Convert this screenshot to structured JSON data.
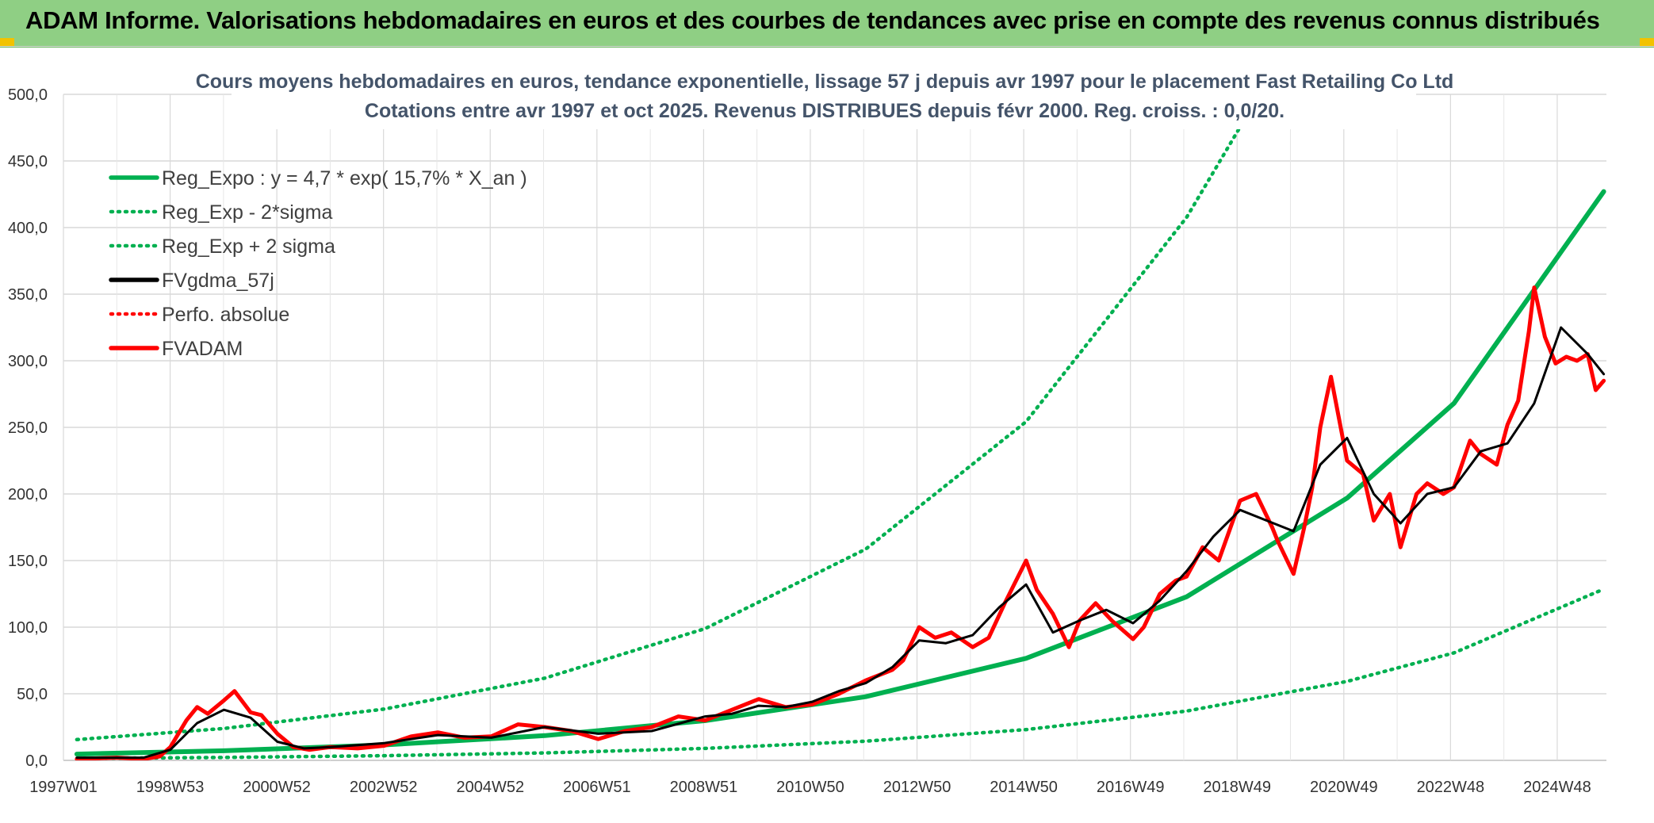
{
  "header": {
    "title": "ADAM Informe. Valorisations hebdomadaires en euros et des courbes de tendances avec prise en compte des revenus connus distribués"
  },
  "colors": {
    "header_bg": "#8fcf84",
    "reg_expo": "#00b050",
    "fv_gdma": "#000000",
    "fvadam": "#ff0000",
    "grid": "#d9d9d9"
  },
  "chart_data": {
    "type": "line",
    "title": "Cours moyens hebdomadaires en euros, tendance exponentielle, lissage 57 j depuis avr 1997 pour le placement Fast Retailing Co Ltd",
    "subtitle": "Cotations entre avr 1997 et oct 2025. Revenus DISTRIBUES depuis févr 2000. Reg. croiss. : 0,0/20.",
    "xlabel": "",
    "ylabel": "",
    "ylim": [
      0,
      500
    ],
    "yticks": [
      "0,0",
      "50,0",
      "100,0",
      "150,0",
      "200,0",
      "250,0",
      "300,0",
      "350,0",
      "400,0",
      "450,0",
      "500,0"
    ],
    "xticks": [
      "1997W01",
      "1998W53",
      "2000W52",
      "2002W52",
      "2004W52",
      "2006W51",
      "2008W51",
      "2010W50",
      "2012W50",
      "2014W50",
      "2016W49",
      "2018W49",
      "2020W49",
      "2022W48",
      "2024W48"
    ],
    "x_range": [
      1997.0,
      2025.85
    ],
    "grid": true,
    "legend_position": "top-left",
    "legend": [
      {
        "label": "Reg_Expo : y = 4,7 * exp( 15,7% *  X_an )",
        "color": "#00b050",
        "style": "solid"
      },
      {
        "label": "Reg_Exp - 2*sigma",
        "color": "#00b050",
        "style": "dotted"
      },
      {
        "label": "Reg_Exp + 2 sigma",
        "color": "#00b050",
        "style": "dotted"
      },
      {
        "label": "FVgdma_57j",
        "color": "#000000",
        "style": "solid"
      },
      {
        "label": "Perfo. absolue",
        "color": "#ff0000",
        "style": "dotted"
      },
      {
        "label": "FVADAM",
        "color": "#ff0000",
        "style": "solid"
      }
    ],
    "series": [
      {
        "name": "Reg_Expo : y = 4,7 * exp( 15,7% *  X_an )",
        "x": [
          1997.25,
          2000,
          2003,
          2006,
          2009,
          2012,
          2015,
          2018,
          2021,
          2023,
          2025.8
        ],
        "values": [
          4.7,
          7.2,
          11.6,
          18.6,
          29.8,
          47.8,
          76.6,
          122.8,
          196.9,
          268.1,
          427
        ]
      },
      {
        "name": "Reg_Exp - 2*sigma",
        "x": [
          1997.25,
          2000,
          2003,
          2006,
          2009,
          2012,
          2015,
          2018,
          2021,
          2023,
          2025.8
        ],
        "values": [
          1.4,
          2.2,
          3.5,
          5.6,
          9.0,
          14.4,
          23.1,
          37.0,
          59.3,
          80.7,
          128.6
        ]
      },
      {
        "name": "Reg_Exp + 2 sigma",
        "x": [
          1997.25,
          2000,
          2003,
          2006,
          2009,
          2012,
          2015,
          2018,
          2019,
          2020,
          2021,
          2021.5,
          2025.8
        ],
        "values": [
          15.6,
          23.9,
          38.5,
          61.7,
          98.9,
          158.6,
          254.3,
          407.6,
          475.5,
          500,
          500,
          500,
          500
        ]
      },
      {
        "name": "FVgdma_57j",
        "x": [
          1997.25,
          1998.0,
          1998.5,
          1999.0,
          1999.5,
          2000.0,
          2000.5,
          2001.0,
          2001.5,
          2002.0,
          2003.0,
          2004.0,
          2005.0,
          2006.0,
          2007.0,
          2008.0,
          2009.0,
          2009.5,
          2010.0,
          2010.5,
          2011.0,
          2011.5,
          2012.0,
          2012.5,
          2013.0,
          2013.5,
          2014.0,
          2014.5,
          2015.0,
          2015.5,
          2016.0,
          2016.5,
          2017.0,
          2017.5,
          2018.0,
          2018.5,
          2019.0,
          2019.5,
          2020.0,
          2020.5,
          2021.0,
          2021.5,
          2022.0,
          2022.5,
          2023.0,
          2023.5,
          2024.0,
          2024.5,
          2025.0,
          2025.5,
          2025.8
        ],
        "values": [
          2,
          2,
          2,
          8,
          28,
          38,
          32,
          14,
          9,
          10,
          13,
          19,
          17,
          25,
          20,
          22,
          33,
          35,
          41,
          40,
          44,
          52,
          58,
          70,
          90,
          88,
          94,
          115,
          132,
          96,
          105,
          113,
          103,
          120,
          142,
          168,
          188,
          180,
          172,
          222,
          242,
          200,
          178,
          200,
          205,
          232,
          238,
          268,
          325,
          305,
          290
        ]
      },
      {
        "name": "FVADAM",
        "x": [
          1997.25,
          1998.0,
          1998.5,
          1998.8,
          1999.0,
          1999.3,
          1999.5,
          1999.7,
          2000.0,
          2000.2,
          2000.5,
          2000.7,
          2001.0,
          2001.3,
          2001.6,
          2002.0,
          2002.5,
          2003.0,
          2003.5,
          2004.0,
          2004.5,
          2005.0,
          2005.5,
          2006.0,
          2006.5,
          2007.0,
          2007.5,
          2008.0,
          2008.5,
          2009.0,
          2009.5,
          2010.0,
          2010.5,
          2011.0,
          2011.5,
          2012.0,
          2012.5,
          2012.7,
          2013.0,
          2013.3,
          2013.6,
          2014.0,
          2014.3,
          2014.6,
          2015.0,
          2015.2,
          2015.5,
          2015.8,
          2016.0,
          2016.3,
          2016.6,
          2017.0,
          2017.2,
          2017.5,
          2017.8,
          2018.0,
          2018.3,
          2018.6,
          2019.0,
          2019.3,
          2019.6,
          2019.7,
          2020.0,
          2020.2,
          2020.35,
          2020.5,
          2020.7,
          2021.0,
          2021.3,
          2021.5,
          2021.8,
          2022.0,
          2022.3,
          2022.5,
          2022.8,
          2023.0,
          2023.3,
          2023.5,
          2023.8,
          2024.0,
          2024.2,
          2024.4,
          2024.5,
          2024.7,
          2024.9,
          2025.1,
          2025.3,
          2025.5,
          2025.65,
          2025.8
        ],
        "values": [
          1,
          2,
          1,
          3,
          10,
          30,
          40,
          35,
          45,
          52,
          36,
          34,
          20,
          10,
          8,
          10,
          9,
          11,
          18,
          21,
          17,
          18,
          27,
          25,
          22,
          16,
          22,
          25,
          33,
          30,
          38,
          46,
          40,
          42,
          50,
          60,
          68,
          75,
          100,
          92,
          96,
          85,
          92,
          118,
          150,
          128,
          110,
          85,
          105,
          118,
          105,
          91,
          100,
          125,
          135,
          138,
          160,
          150,
          195,
          200,
          175,
          165,
          140,
          175,
          205,
          250,
          288,
          225,
          215,
          180,
          200,
          160,
          200,
          208,
          200,
          205,
          240,
          230,
          222,
          252,
          270,
          322,
          355,
          318,
          298,
          303,
          300,
          305,
          278,
          285
        ]
      }
    ]
  }
}
